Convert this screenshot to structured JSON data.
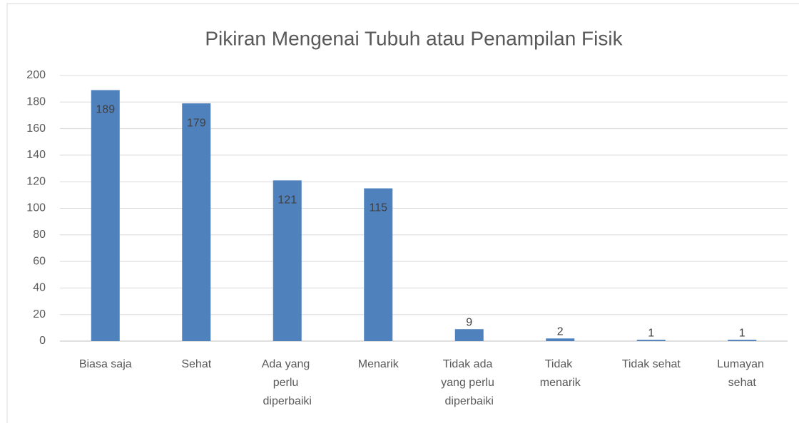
{
  "chart_data": {
    "type": "bar",
    "title": "Pikiran Mengenai Tubuh atau Penampilan Fisik",
    "categories": [
      "Biasa saja",
      "Sehat",
      "Ada yang perlu diperbaiki",
      "Menarik",
      "Tidak ada yang perlu diperbaiki",
      "Tidak menarik",
      "Tidak sehat",
      "Lumayan sehat"
    ],
    "values": [
      189,
      179,
      121,
      115,
      9,
      2,
      1,
      1
    ],
    "color": "#4f81bd",
    "ylim": [
      0,
      200
    ],
    "yticks": [
      0,
      20,
      40,
      60,
      80,
      100,
      120,
      140,
      160,
      180,
      200
    ],
    "grid": true
  }
}
